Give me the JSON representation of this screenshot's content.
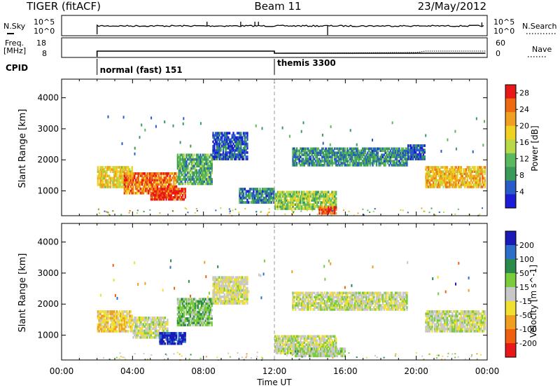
{
  "header": {
    "station": "TIGER (fitACF)",
    "beam": "Beam 11",
    "date": "23/May/2012"
  },
  "left_labels": {
    "nsky": "N.Sky",
    "nsky_tick_top": "10^5",
    "nsky_tick_bottom": "10^0",
    "freq_line1": "Freq.",
    "freq_line2": "[MHz]",
    "freq_tick_top": "18",
    "freq_tick_bottom": "8",
    "cpid": "CPID"
  },
  "right_labels": {
    "nsearch": "N.Search",
    "nsearch_tick_top": "10^5",
    "nsearch_tick_bottom": "10^0",
    "nave": "Nave",
    "nave_tick_top": "60",
    "nave_tick_bottom": "0"
  },
  "cpid_segments": [
    {
      "start_h": 2.0,
      "label": "normal (fast) 151"
    },
    {
      "start_h": 12.0,
      "label": "themis 3300"
    }
  ],
  "colors": {
    "power": [
      "#1c1cd6",
      "#2a5cc8",
      "#3a9a5a",
      "#5cb85c",
      "#b8d848",
      "#f0d020",
      "#f0a020",
      "#ee6a10",
      "#e81818"
    ],
    "velocity": [
      "#1a1ab8",
      "#2c6ec8",
      "#2a8a4a",
      "#7acc3c",
      "#c8c8c8",
      "#f0e030",
      "#f0a020",
      "#ee6010",
      "#e81818"
    ]
  },
  "chart_data": [
    {
      "type": "heatmap",
      "title": "Power",
      "ylabel": "Slant Range [km]",
      "xlabel": "Time UT",
      "xlim": [
        0,
        24
      ],
      "ylim": [
        200,
        4600
      ],
      "x_ticks": [
        "00:00",
        "04:00",
        "08:00",
        "12:00",
        "16:00",
        "20:00",
        "00:00"
      ],
      "y_ticks": [
        "1000",
        "2000",
        "3000",
        "4000"
      ],
      "colorbar": {
        "label": "Power [dB]",
        "ticks": [
          "4",
          "8",
          "12",
          "16",
          "20",
          "24",
          "28"
        ],
        "range": [
          0,
          30
        ]
      },
      "regions": [
        {
          "t0": 2.0,
          "t1": 4.0,
          "r0": 1100,
          "r1": 1800,
          "value": 18
        },
        {
          "t0": 3.5,
          "t1": 6.5,
          "r0": 900,
          "r1": 1600,
          "value": 24
        },
        {
          "t0": 5.0,
          "t1": 7.0,
          "r0": 700,
          "r1": 1100,
          "value": 27
        },
        {
          "t0": 6.5,
          "t1": 8.5,
          "r0": 1200,
          "r1": 2200,
          "value": 10
        },
        {
          "t0": 8.5,
          "t1": 10.5,
          "r0": 2000,
          "r1": 2900,
          "value": 5
        },
        {
          "t0": 10.0,
          "t1": 12.0,
          "r0": 600,
          "r1": 1100,
          "value": 7
        },
        {
          "t0": 12.0,
          "t1": 15.5,
          "r0": 400,
          "r1": 1000,
          "value": 14
        },
        {
          "t0": 14.5,
          "t1": 15.5,
          "r0": 250,
          "r1": 500,
          "value": 27
        },
        {
          "t0": 13.0,
          "t1": 19.5,
          "r0": 1800,
          "r1": 2400,
          "value": 8
        },
        {
          "t0": 19.5,
          "t1": 20.5,
          "r0": 2000,
          "r1": 2500,
          "value": 5
        },
        {
          "t0": 20.5,
          "t1": 23.9,
          "r0": 1100,
          "r1": 1800,
          "value": 20
        }
      ]
    },
    {
      "type": "heatmap",
      "title": "Velocity",
      "ylabel": "Slant Range [km]",
      "xlabel": "Time UT",
      "xlim": [
        0,
        24
      ],
      "ylim": [
        200,
        4600
      ],
      "x_ticks": [
        "00:00",
        "04:00",
        "08:00",
        "12:00",
        "16:00",
        "20:00",
        "00:00"
      ],
      "y_ticks": [
        "1000",
        "2000",
        "3000",
        "4000"
      ],
      "colorbar": {
        "label": "Velocity [m s^-1]",
        "ticks": [
          "200",
          "100",
          "50",
          "15",
          "-15",
          "-50",
          "-100",
          "-200"
        ],
        "range": [
          -250,
          250
        ]
      },
      "regions": [
        {
          "t0": 2.0,
          "t1": 4.0,
          "r0": 1100,
          "r1": 1800,
          "value": -70
        },
        {
          "t0": 4.0,
          "t1": 6.0,
          "r0": 900,
          "r1": 1600,
          "value": 0
        },
        {
          "t0": 5.5,
          "t1": 7.0,
          "r0": 700,
          "r1": 1100,
          "value": 220
        },
        {
          "t0": 6.5,
          "t1": 8.5,
          "r0": 1300,
          "r1": 2200,
          "value": 60
        },
        {
          "t0": 8.5,
          "t1": 10.5,
          "r0": 2000,
          "r1": 2900,
          "value": -20
        },
        {
          "t0": 12.0,
          "t1": 15.5,
          "r0": 400,
          "r1": 1000,
          "value": 0
        },
        {
          "t0": 13.0,
          "t1": 16.0,
          "r0": 300,
          "r1": 600,
          "value": 30
        },
        {
          "t0": 13.0,
          "t1": 19.5,
          "r0": 1800,
          "r1": 2400,
          "value": 0
        },
        {
          "t0": 20.5,
          "t1": 23.9,
          "r0": 1100,
          "r1": 1800,
          "value": 0
        }
      ]
    }
  ]
}
